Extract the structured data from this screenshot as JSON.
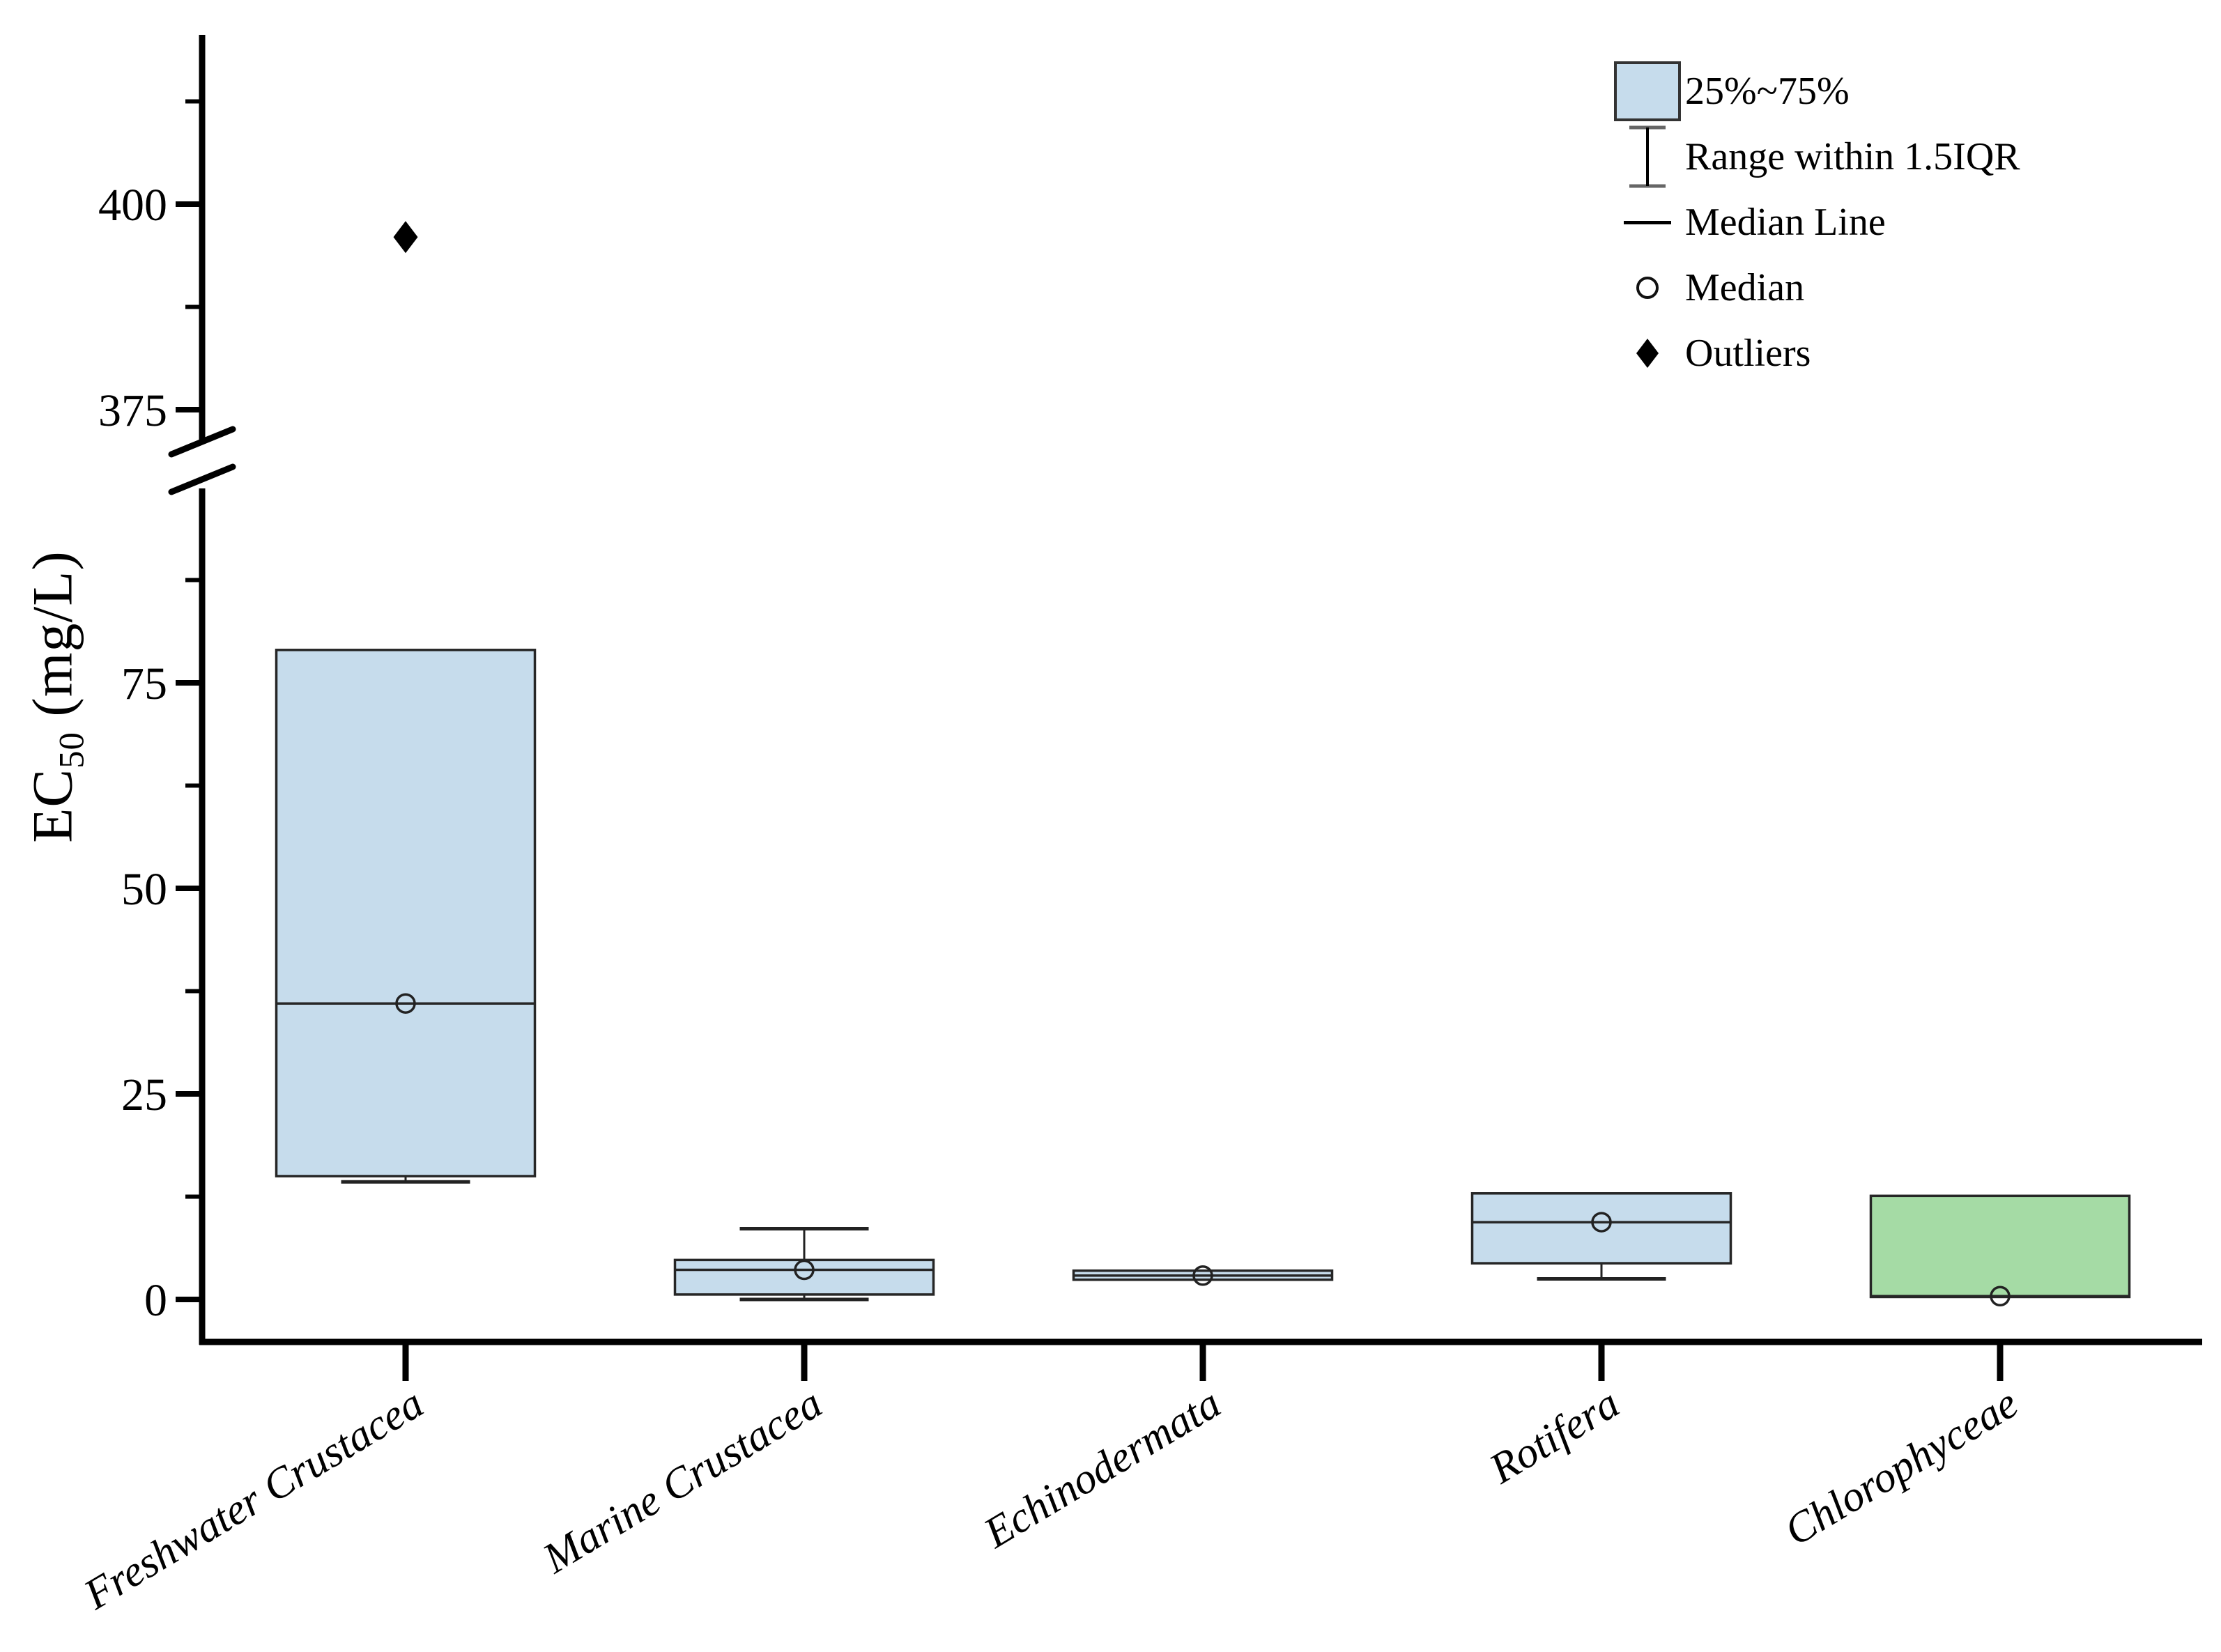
{
  "figure": {
    "y_axis_title": {
      "prefix": "EC",
      "subscript": "50",
      "suffix": " (mg/L)"
    },
    "legend": {
      "items": [
        {
          "icon": "box-swatch-icon",
          "label": "25%~75%"
        },
        {
          "icon": "whisker-icon",
          "label": "Range within 1.5IQR"
        },
        {
          "icon": "median-line-icon",
          "label": "Median Line"
        },
        {
          "icon": "median-circle-icon",
          "label": "Median"
        },
        {
          "icon": "outlier-diamond-icon",
          "label": "Outliers"
        }
      ]
    }
  },
  "colors": {
    "box_fill_blue": "#c6dcec",
    "box_fill_green": "#a5dba5",
    "box_stroke": "#262626",
    "axis": "#000000",
    "text": "#000000",
    "whisker_cap_gray": "#666666"
  },
  "chart_data": {
    "type": "box",
    "title": "",
    "xlabel": "",
    "ylabel": "EC50 (mg/L)",
    "unit": "mg/L",
    "grid": false,
    "legend_position": "top-right",
    "categories": [
      "Freshwater Crustacea",
      "Marine Crustacea",
      "Echinodermata",
      "Rotifera",
      "Chlorophyceae"
    ],
    "y_axis": {
      "break": true,
      "lower_range": [
        0,
        98
      ],
      "upper_range": [
        371,
        422
      ],
      "lower_major_ticks": [
        0,
        25,
        50,
        75
      ],
      "lower_minor_ticks": [
        12.5,
        37.5,
        62.5,
        87.5
      ],
      "upper_major_ticks": [
        375,
        400
      ],
      "upper_minor_ticks": [
        387.5,
        412.5
      ]
    },
    "boxes": [
      {
        "category": "Freshwater Crustacea",
        "q1": 15,
        "median": 36,
        "q3": 79,
        "whisker_low": 14.3,
        "whisker_high": null,
        "outliers": [
          396
        ],
        "fill": "#c6dcec"
      },
      {
        "category": "Marine Crustacea",
        "q1": 0.6,
        "median": 3.6,
        "q3": 4.8,
        "whisker_low": 0,
        "whisker_high": 8.6,
        "outliers": [],
        "fill": "#c6dcec"
      },
      {
        "category": "Echinodermata",
        "q1": 2.4,
        "median": 2.9,
        "q3": 3.5,
        "whisker_low": null,
        "whisker_high": null,
        "outliers": [],
        "fill": "#c6dcec"
      },
      {
        "category": "Rotifera",
        "q1": 4.4,
        "median": 9.4,
        "q3": 12.9,
        "whisker_low": 2.5,
        "whisker_high": null,
        "outliers": [],
        "fill": "#c6dcec"
      },
      {
        "category": "Chlorophyceae",
        "q1": 0.3,
        "median": 0.4,
        "q3": 12.6,
        "whisker_low": null,
        "whisker_high": null,
        "outliers": [],
        "fill": "#a5dba5"
      }
    ]
  }
}
